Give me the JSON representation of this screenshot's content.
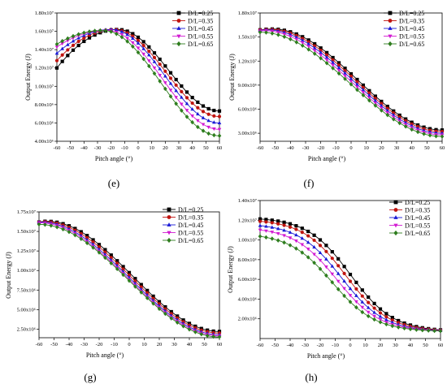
{
  "chart_data": [
    {
      "panel_label": "(e)",
      "type": "line",
      "xlabel": "Pitch angle (°)",
      "ylabel": "Output Energy (J)",
      "xlim": [
        -60,
        60
      ],
      "ylim": [
        4000000,
        18000000
      ],
      "x_ticks": [
        "-60",
        "-50",
        "-40",
        "-30",
        "-20",
        "-10",
        "0",
        "10",
        "20",
        "30",
        "40",
        "50",
        "60"
      ],
      "y_ticks": [
        "4.00x10⁶",
        "6.00x10⁶",
        "8.00x10⁶",
        "1.00x10⁷",
        "1.20x10⁷",
        "1.40x10⁷",
        "1.60x10⁷",
        "1.80x10⁷"
      ],
      "y_tick_values": [
        4000000,
        6000000,
        8000000,
        10000000,
        12000000,
        14000000,
        16000000,
        18000000
      ],
      "legend_position": "top-right",
      "series": [
        {
          "name": "D/L=0.25",
          "peak_x": -15,
          "peak_y": 16200000,
          "y_at_min_x": 12000000,
          "y_at_max_x": 7300000
        },
        {
          "name": "D/L=0.35",
          "peak_x": -18,
          "peak_y": 16200000,
          "y_at_min_x": 12800000,
          "y_at_max_x": 6700000
        },
        {
          "name": "D/L=0.45",
          "peak_x": -20,
          "peak_y": 16200000,
          "y_at_min_x": 13600000,
          "y_at_max_x": 6000000
        },
        {
          "name": "D/L=0.55",
          "peak_x": -23,
          "peak_y": 16100000,
          "y_at_min_x": 14300000,
          "y_at_max_x": 5300000
        },
        {
          "name": "D/L=0.65",
          "peak_x": -26,
          "peak_y": 16100000,
          "y_at_min_x": 14600000,
          "y_at_max_x": 4600000
        }
      ]
    },
    {
      "panel_label": "(f)",
      "type": "line",
      "xlabel": "Pitch angle (°)",
      "ylabel": "Output Energy (J)",
      "xlim": [
        -60,
        60
      ],
      "ylim": [
        2000000,
        18000000
      ],
      "x_ticks": [
        "-60",
        "-50",
        "-40",
        "-30",
        "-20",
        "-10",
        "0",
        "10",
        "20",
        "30",
        "40",
        "50",
        "60"
      ],
      "y_ticks": [
        "3.00x10⁶",
        "6.00x10⁶",
        "9.00x10⁶",
        "1.20x10⁷",
        "1.50x10⁷",
        "1.80x10⁷"
      ],
      "y_tick_values": [
        3000000,
        6000000,
        9000000,
        12000000,
        15000000,
        18000000
      ],
      "legend_position": "top-right",
      "series": [
        {
          "name": "D/L=0.25",
          "peak_x": -52,
          "peak_y": 16000000,
          "y_at_min_x": 15900000,
          "y_at_max_x": 3400000
        },
        {
          "name": "D/L=0.35",
          "peak_x": -54,
          "peak_y": 15950000,
          "y_at_min_x": 15900000,
          "y_at_max_x": 3200000
        },
        {
          "name": "D/L=0.45",
          "peak_x": -56,
          "peak_y": 15900000,
          "y_at_min_x": 15850000,
          "y_at_max_x": 3000000
        },
        {
          "name": "D/L=0.55",
          "peak_x": -58,
          "peak_y": 15800000,
          "y_at_min_x": 15750000,
          "y_at_max_x": 2800000
        },
        {
          "name": "D/L=0.65",
          "peak_x": -60,
          "peak_y": 15600000,
          "y_at_min_x": 15600000,
          "y_at_max_x": 2600000
        }
      ]
    },
    {
      "panel_label": "(g)",
      "type": "line",
      "xlabel": "Pitch angle (°)",
      "ylabel": "Output Energy (J)",
      "xlim": [
        -60,
        60
      ],
      "ylim": [
        1400000,
        17500000
      ],
      "x_ticks": [
        "-60",
        "-50",
        "-40",
        "-30",
        "-20",
        "-10",
        "0",
        "10",
        "20",
        "30",
        "40",
        "50",
        "60"
      ],
      "y_ticks": [
        "2.50x10⁶",
        "5.00x10⁶",
        "7.50x10⁶",
        "1.00x10⁷",
        "1.25x10⁷",
        "1.50x10⁷",
        "1.75x10⁷"
      ],
      "y_tick_values": [
        2500000,
        5000000,
        7500000,
        10000000,
        12500000,
        15000000,
        17500000
      ],
      "legend_position": "top-right",
      "series": [
        {
          "name": "D/L=0.25",
          "peak_x": -55,
          "peak_y": 16300000,
          "y_at_min_x": 16200000,
          "y_at_max_x": 2200000
        },
        {
          "name": "D/L=0.35",
          "peak_x": -57,
          "peak_y": 16250000,
          "y_at_min_x": 16200000,
          "y_at_max_x": 2000000
        },
        {
          "name": "D/L=0.45",
          "peak_x": -59,
          "peak_y": 16200000,
          "y_at_min_x": 16200000,
          "y_at_max_x": 1800000
        },
        {
          "name": "D/L=0.55",
          "peak_x": -60,
          "peak_y": 16100000,
          "y_at_min_x": 16100000,
          "y_at_max_x": 1650000
        },
        {
          "name": "D/L=0.65",
          "peak_x": -60,
          "peak_y": 15900000,
          "y_at_min_x": 15900000,
          "y_at_max_x": 1500000
        }
      ]
    },
    {
      "panel_label": "(h)",
      "type": "line",
      "xlabel": "Pitch angle (°)",
      "ylabel": "Output Energy (J)",
      "xlim": [
        -60,
        60
      ],
      "ylim": [
        0,
        14000000
      ],
      "x_ticks": [
        "-60",
        "-50",
        "-40",
        "-30",
        "-20",
        "-10",
        "0",
        "10",
        "20",
        "30",
        "40",
        "50",
        "60"
      ],
      "y_ticks": [
        "2.00x10⁶",
        "4.00x10⁶",
        "6.00x10⁶",
        "8.00x10⁶",
        "1.00x10⁷",
        "1.20x10⁷",
        "1.40x10⁷"
      ],
      "y_tick_values": [
        2000000,
        4000000,
        6000000,
        8000000,
        10000000,
        12000000,
        14000000
      ],
      "legend_position": "top-right",
      "series": [
        {
          "name": "D/L=0.25",
          "y_at_min_x": 12300000,
          "y_at_max_x": 700000,
          "mid_x": 0,
          "slope": 0.07
        },
        {
          "name": "D/L=0.35",
          "y_at_min_x": 12100000,
          "y_at_max_x": 700000,
          "mid_x": -3,
          "slope": 0.07
        },
        {
          "name": "D/L=0.45",
          "y_at_min_x": 11700000,
          "y_at_max_x": 700000,
          "mid_x": -6,
          "slope": 0.07
        },
        {
          "name": "D/L=0.55",
          "y_at_min_x": 11300000,
          "y_at_max_x": 700000,
          "mid_x": -9,
          "slope": 0.07
        },
        {
          "name": "D/L=0.65",
          "y_at_min_x": 10700000,
          "y_at_max_x": 700000,
          "mid_x": -12,
          "slope": 0.07
        }
      ]
    }
  ],
  "series_styles": [
    {
      "color": "#000000",
      "marker": "square"
    },
    {
      "color": "#c0140f",
      "marker": "circle"
    },
    {
      "color": "#1a1ad6",
      "marker": "triangle-up"
    },
    {
      "color": "#d21ad2",
      "marker": "triangle-down"
    },
    {
      "color": "#2e7d1e",
      "marker": "diamond"
    }
  ]
}
